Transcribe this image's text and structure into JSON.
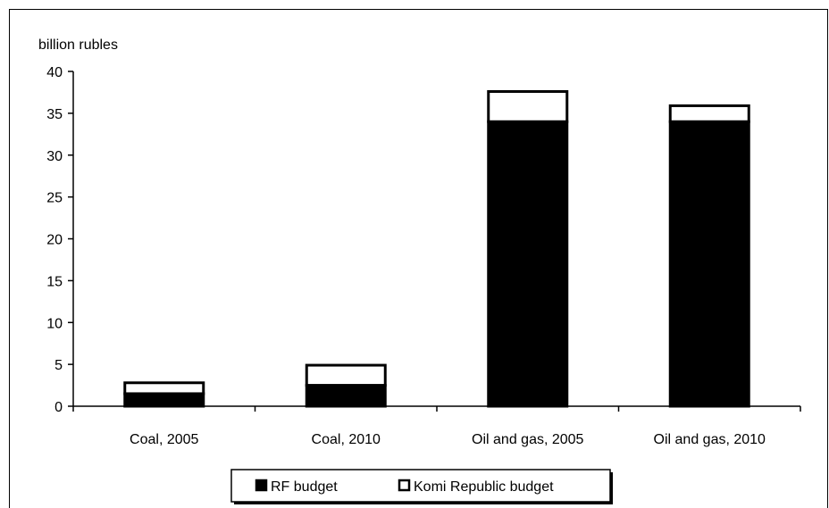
{
  "chart_data": {
    "type": "bar",
    "stacked": true,
    "title": "",
    "ylabel": "billion rubles",
    "xlabel": "",
    "ylim": [
      0,
      40
    ],
    "yticks": [
      0,
      5,
      10,
      15,
      20,
      25,
      30,
      35,
      40
    ],
    "grid": false,
    "legend_position": "bottom",
    "categories": [
      "Coal, 2005",
      "Coal, 2010",
      "Oil and gas, 2005",
      "Oil and gas, 2010"
    ],
    "series": [
      {
        "name": "RF budget",
        "color": "#000000",
        "values": [
          1.5,
          2.5,
          34.0,
          34.0
        ]
      },
      {
        "name": "Komi Republic budget",
        "color": "#ffffff",
        "values": [
          1.3,
          2.4,
          3.6,
          1.9
        ]
      }
    ]
  }
}
